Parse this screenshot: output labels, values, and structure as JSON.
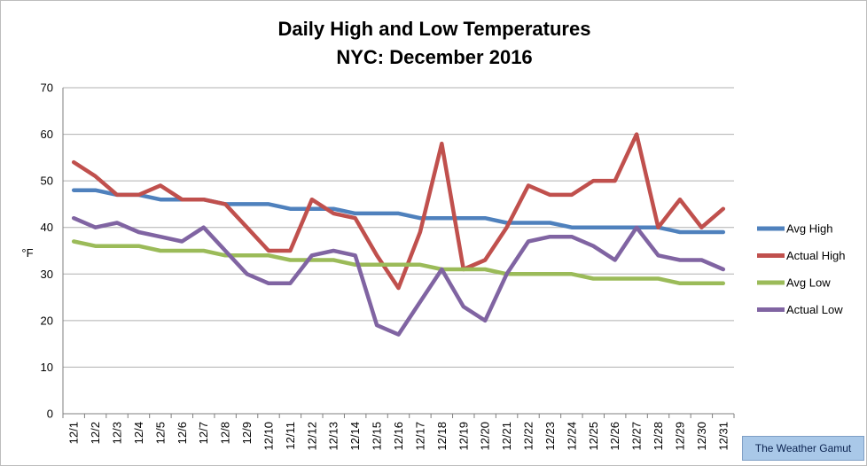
{
  "chart_data": {
    "type": "line",
    "title": "Daily High and Low Temperatures",
    "subtitle": "NYC: December 2016",
    "ylabel": "°F",
    "xlabel": "",
    "ylim": [
      0,
      70
    ],
    "yticks": [
      0,
      10,
      20,
      30,
      40,
      50,
      60,
      70
    ],
    "grid": true,
    "legend_position": "right",
    "categories": [
      "12/1",
      "12/2",
      "12/3",
      "12/4",
      "12/5",
      "12/6",
      "12/7",
      "12/8",
      "12/9",
      "12/10",
      "12/11",
      "12/12",
      "12/13",
      "12/14",
      "12/15",
      "12/16",
      "12/17",
      "12/18",
      "12/19",
      "12/20",
      "12/21",
      "12/22",
      "12/23",
      "12/24",
      "12/25",
      "12/26",
      "12/27",
      "12/28",
      "12/29",
      "12/30",
      "12/31"
    ],
    "series": [
      {
        "name": "Avg High",
        "color": "#4f81bd",
        "values": [
          48,
          48,
          47,
          47,
          46,
          46,
          46,
          45,
          45,
          45,
          44,
          44,
          44,
          43,
          43,
          43,
          42,
          42,
          42,
          42,
          41,
          41,
          41,
          40,
          40,
          40,
          40,
          40,
          39,
          39,
          39
        ]
      },
      {
        "name": "Actual High",
        "color": "#c0504d",
        "values": [
          54,
          51,
          47,
          47,
          49,
          46,
          46,
          45,
          40,
          35,
          35,
          46,
          43,
          42,
          34,
          27,
          39,
          58,
          31,
          33,
          40,
          49,
          47,
          47,
          50,
          50,
          60,
          40,
          46,
          40,
          44
        ]
      },
      {
        "name": "Avg Low",
        "color": "#9bbb59",
        "values": [
          37,
          36,
          36,
          36,
          35,
          35,
          35,
          34,
          34,
          34,
          33,
          33,
          33,
          32,
          32,
          32,
          32,
          31,
          31,
          31,
          30,
          30,
          30,
          30,
          29,
          29,
          29,
          29,
          28,
          28,
          28
        ]
      },
      {
        "name": "Actual Low",
        "color": "#8064a2",
        "values": [
          42,
          40,
          41,
          39,
          38,
          37,
          40,
          35,
          30,
          28,
          28,
          34,
          35,
          34,
          19,
          17,
          24,
          31,
          23,
          20,
          30,
          37,
          38,
          38,
          36,
          33,
          40,
          34,
          33,
          33,
          31
        ]
      }
    ]
  },
  "watermark": "The Weather Gamut"
}
